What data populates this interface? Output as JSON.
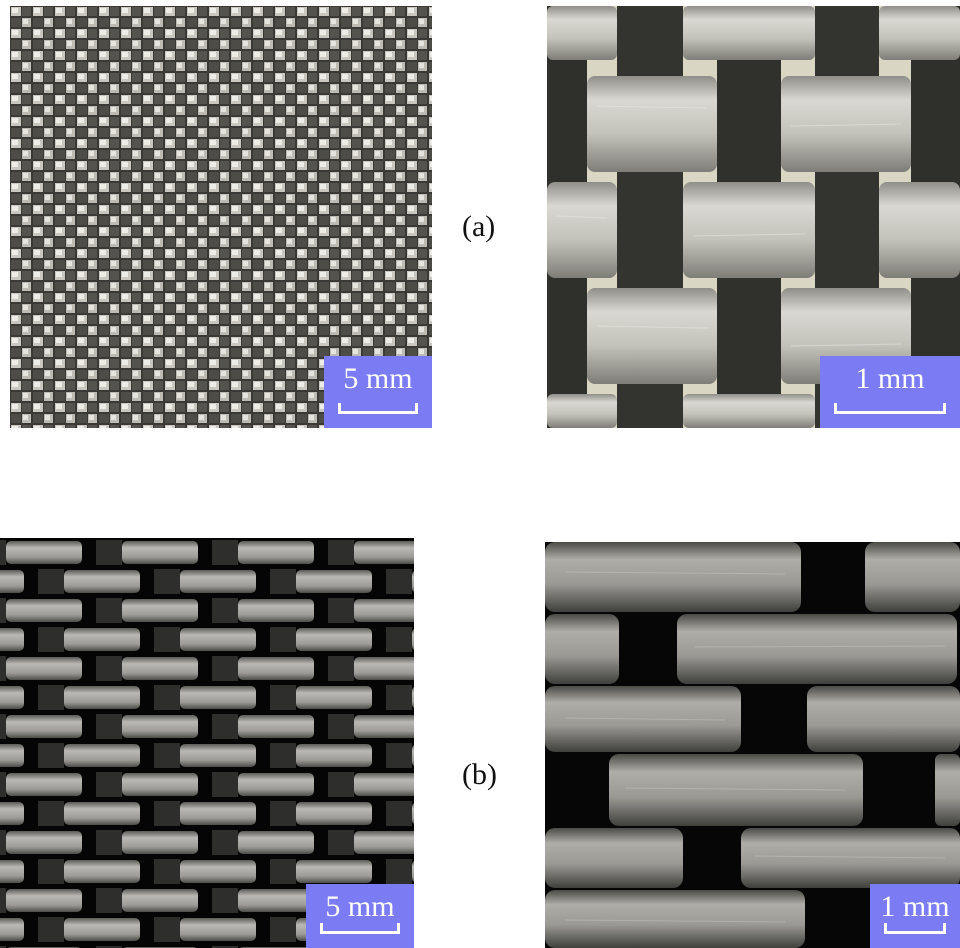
{
  "row_a": {
    "label": "(a)",
    "left_panel": {
      "image": "plain-weave-fabric-low-magnification",
      "scale_label": "5 mm"
    },
    "right_panel": {
      "image": "plain-weave-fabric-high-magnification",
      "scale_label": "1 mm"
    }
  },
  "row_b": {
    "label": "(b)",
    "left_panel": {
      "image": "coarse-weave-fabric-low-magnification",
      "scale_label": "5 mm"
    },
    "right_panel": {
      "image": "coarse-weave-fabric-high-magnification",
      "scale_label": "1 mm"
    }
  },
  "colors": {
    "scalebar_bg": "#7b7cf3",
    "scalebar_text": "#ffffff"
  }
}
